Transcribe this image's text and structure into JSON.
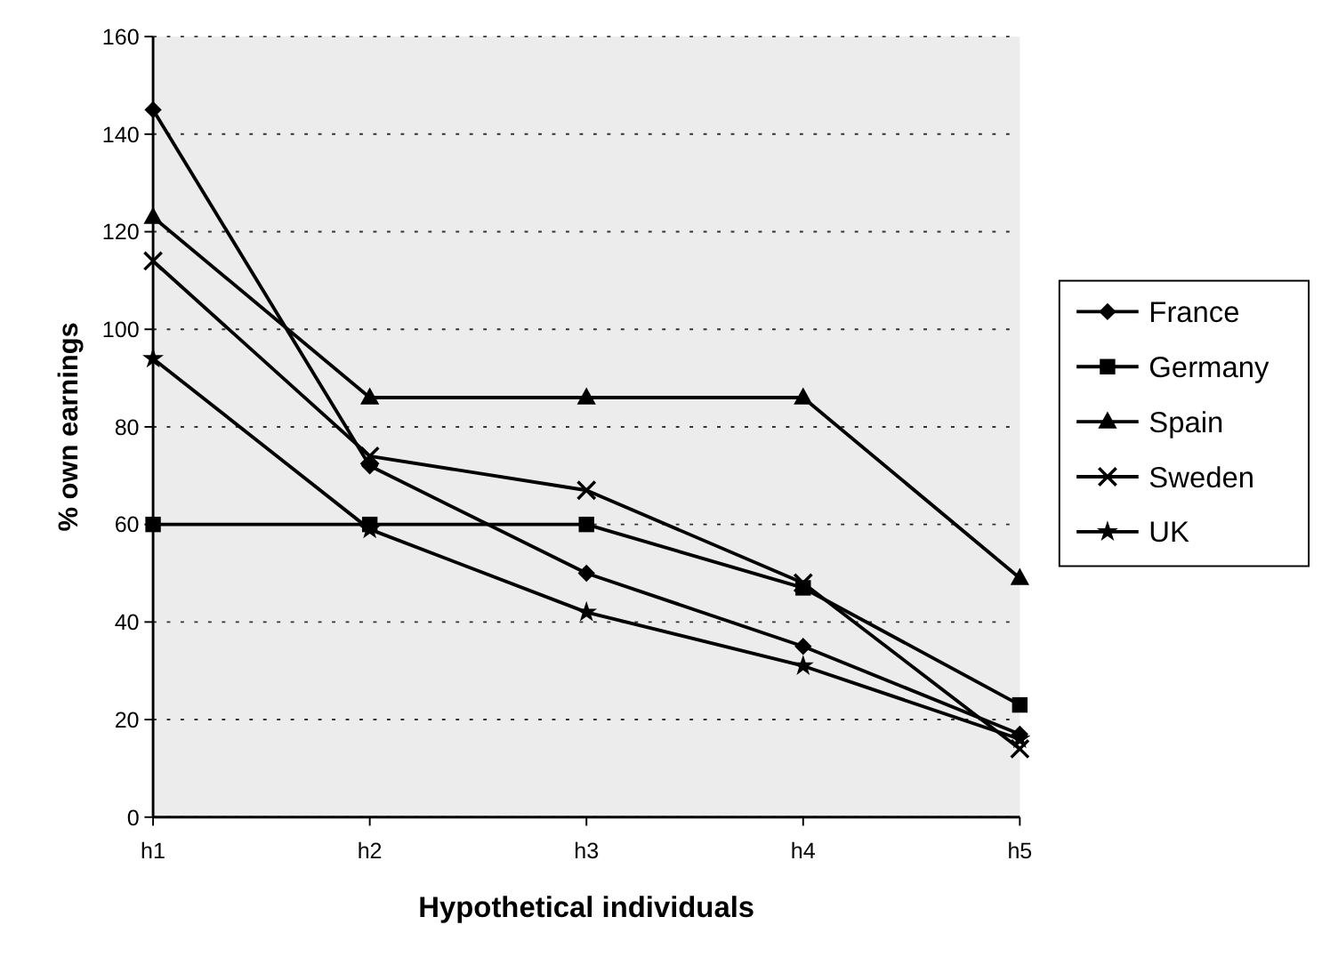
{
  "chart_data": {
    "type": "line",
    "xlabel": "Hypothetical individuals",
    "ylabel": "% own earnings",
    "categories": [
      "h1",
      "h2",
      "h3",
      "h4",
      "h5"
    ],
    "series": [
      {
        "name": "France",
        "color": "#000000",
        "marker": "diamond",
        "values": [
          145,
          72,
          50,
          35,
          17
        ]
      },
      {
        "name": "Germany",
        "color": "#000000",
        "marker": "square",
        "values": [
          60,
          60,
          60,
          47,
          23
        ]
      },
      {
        "name": "Spain",
        "color": "#000000",
        "marker": "triangle",
        "values": [
          123,
          86,
          86,
          86,
          49
        ]
      },
      {
        "name": "Sweden",
        "color": "#000000",
        "marker": "cross",
        "values": [
          114,
          74,
          67,
          48,
          14
        ]
      },
      {
        "name": "UK",
        "color": "#000000",
        "marker": "star",
        "values": [
          94,
          59,
          42,
          31,
          16
        ]
      }
    ],
    "ylim": [
      0,
      160
    ],
    "yticks": [
      0,
      20,
      40,
      60,
      80,
      100,
      120,
      140,
      160
    ],
    "grid": "y",
    "legend": "right",
    "line_style": "solid"
  }
}
